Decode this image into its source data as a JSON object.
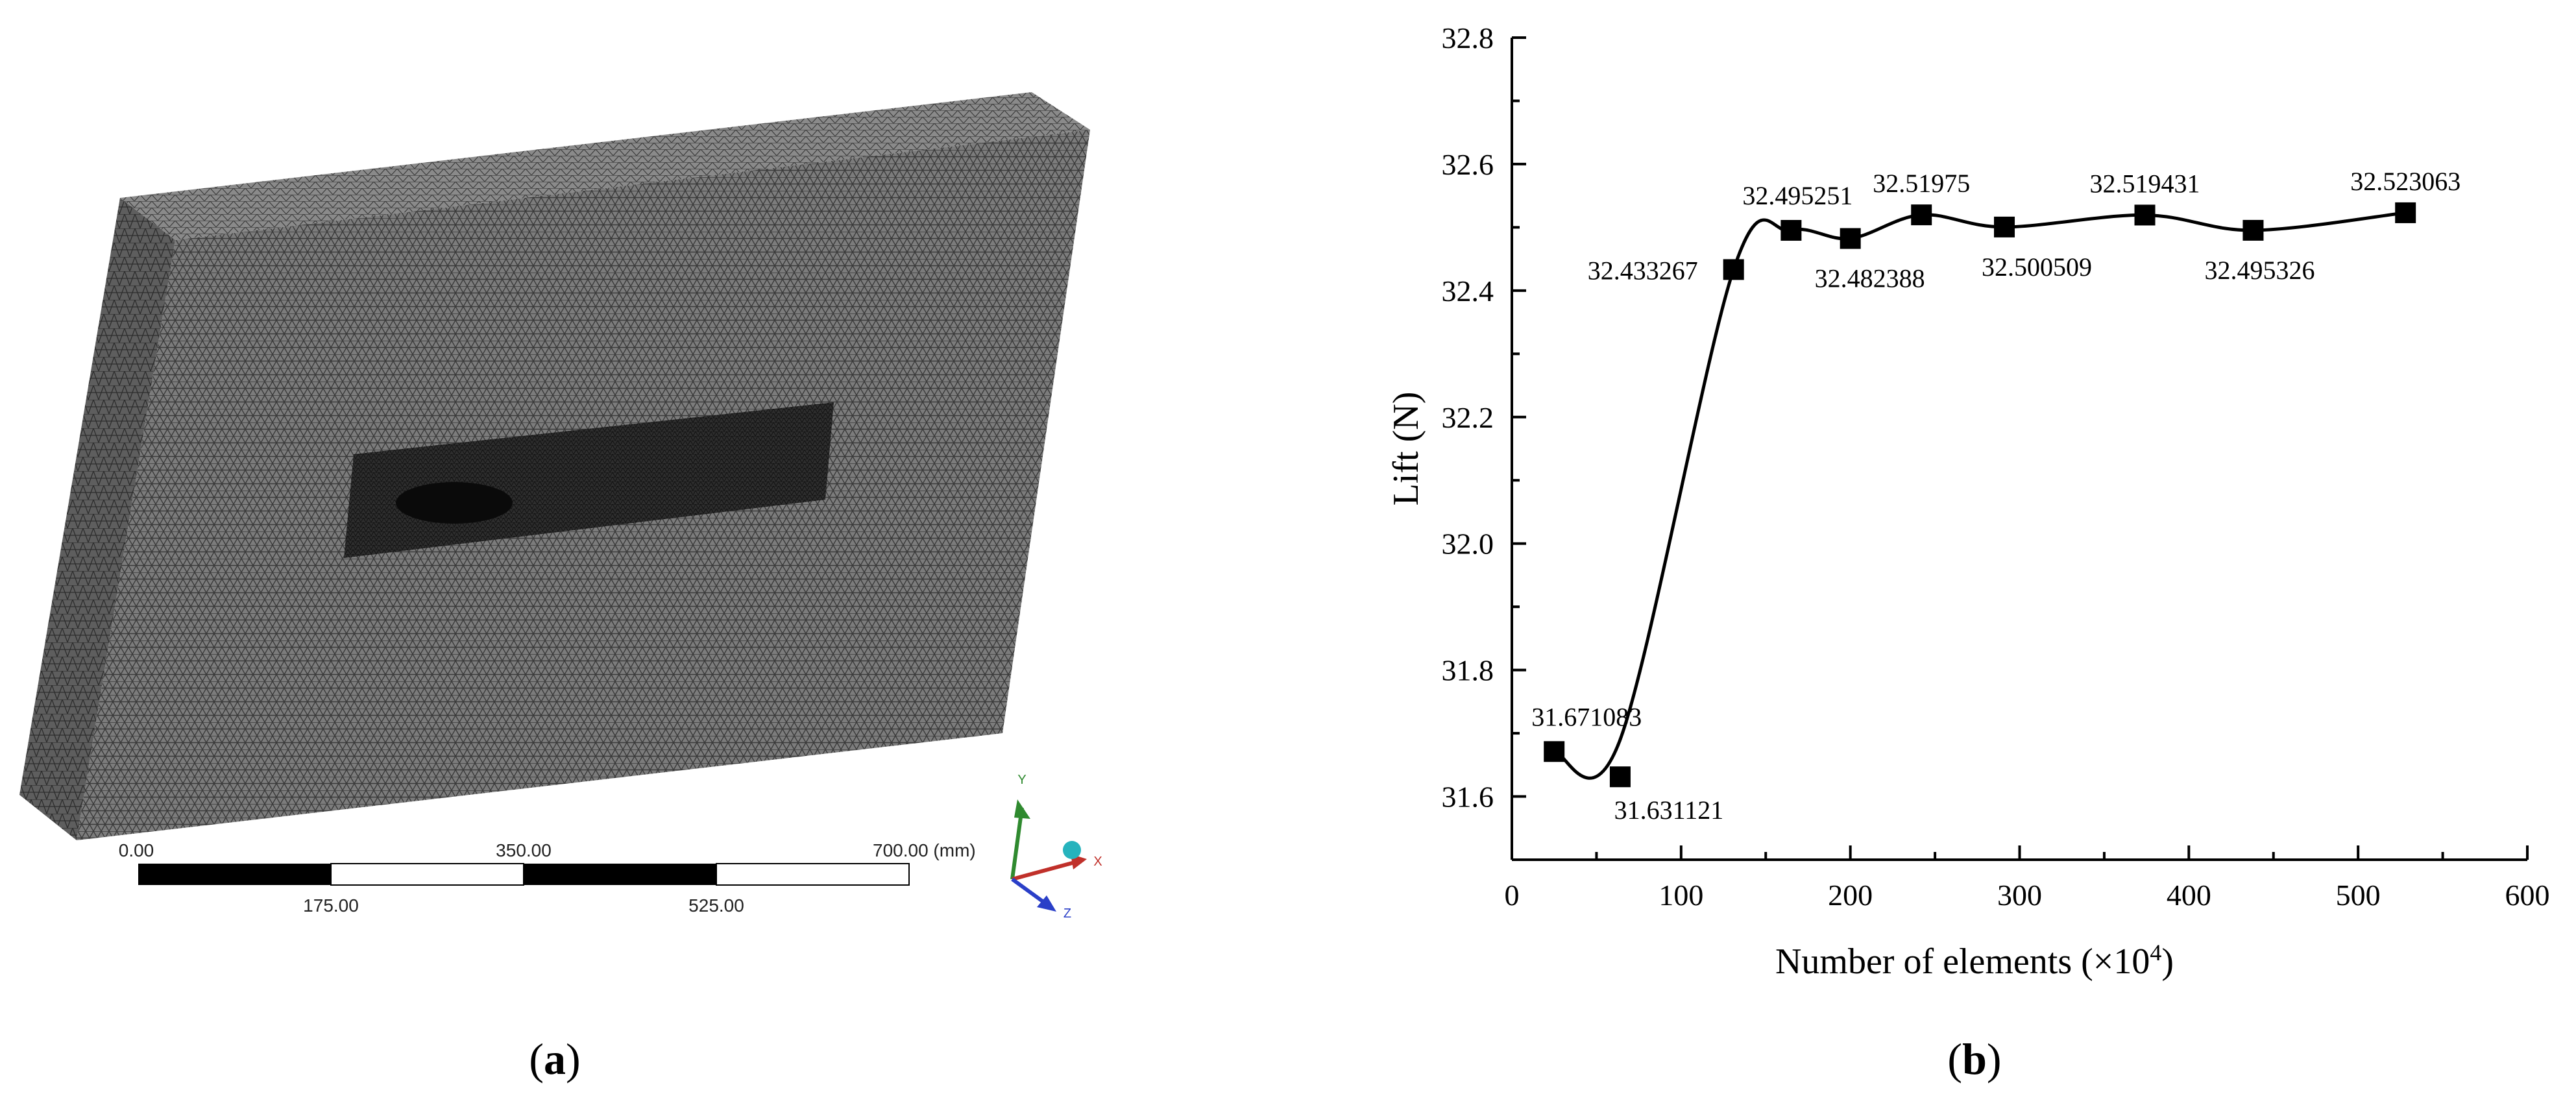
{
  "figure": {
    "panels": [
      {
        "label": "a"
      },
      {
        "label": "b"
      }
    ]
  },
  "mesh_panel": {
    "scale_bar": {
      "top_labels": [
        "0.00",
        "350.00",
        "700.00 (mm)"
      ],
      "bottom_labels": [
        "175.00",
        "525.00"
      ]
    },
    "triad": {
      "x": "X",
      "y": "Y",
      "z": "Z"
    },
    "colors": {
      "mesh": "#5a5a5a",
      "refined_zone": "#1e1e1e",
      "x_axis": "#c0302a",
      "y_axis": "#2f8a2f",
      "z_axis": "#2a3fc8",
      "origin": "#26b3bd"
    }
  },
  "chart_data": {
    "type": "line",
    "xlabel_text": "Number of elements (×10",
    "xlabel_sup": "4",
    "xlabel_close": ")",
    "ylabel": "Lift (N)",
    "xlim": [
      0,
      600
    ],
    "ylim": [
      31.5,
      32.8
    ],
    "xticks": [
      "0",
      "100",
      "200",
      "300",
      "400",
      "500",
      "600"
    ],
    "yticks": [
      "31.6",
      "31.8",
      "32.0",
      "32.2",
      "32.4",
      "32.6",
      "32.8"
    ],
    "grid": false,
    "marker": "square",
    "series": [
      {
        "x": [
          25,
          64,
          131,
          165,
          200,
          242,
          291,
          374,
          438,
          528
        ],
        "values": [
          31.671083,
          31.631121,
          32.433267,
          32.495251,
          32.482388,
          32.51975,
          32.500509,
          32.519431,
          32.495326,
          32.523063
        ],
        "point_labels": [
          "31.671083",
          "31.631121",
          "32.433267",
          "32.495251",
          "32.482388",
          "32.51975",
          "32.500509",
          "32.519431",
          "32.495326",
          "32.523063"
        ]
      }
    ]
  }
}
